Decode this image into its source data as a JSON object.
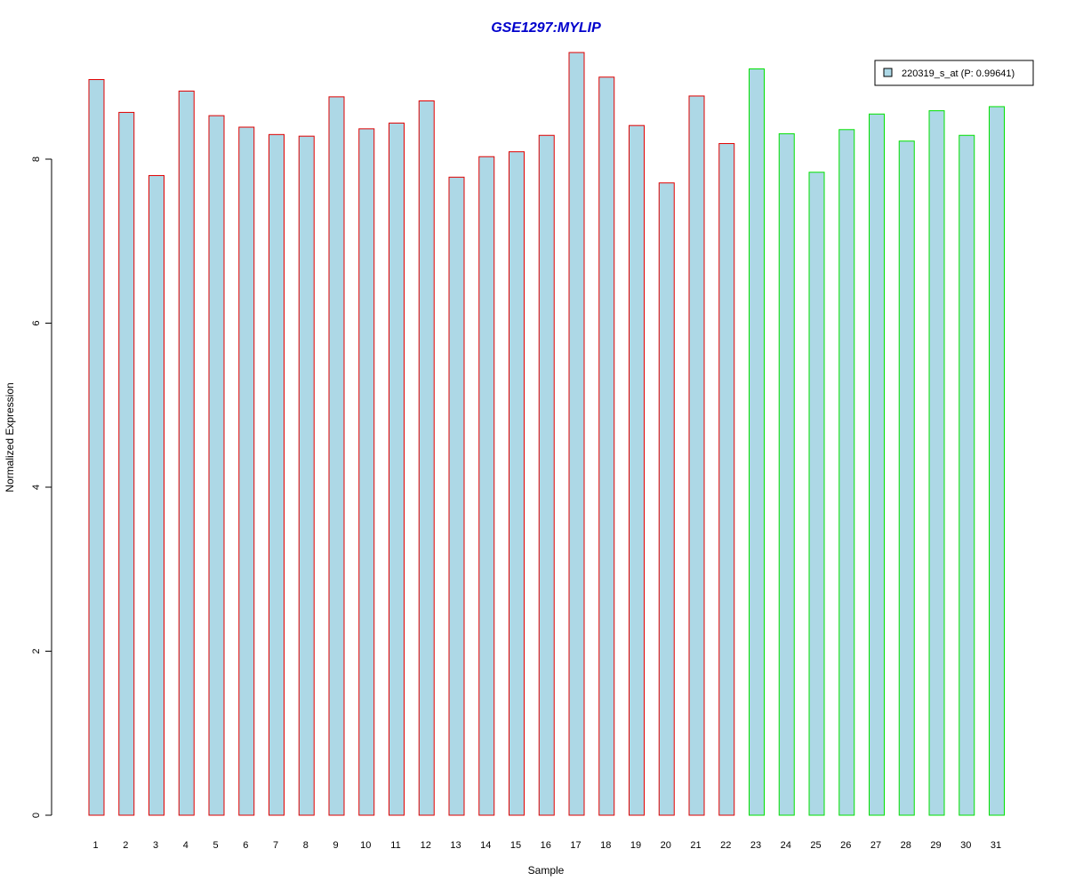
{
  "chart_data": {
    "type": "bar",
    "title": "GSE1297:MYLIP",
    "xlabel": "Sample",
    "ylabel": "Normalized Expression",
    "ylim": [
      0,
      9.4
    ],
    "yticks": [
      0,
      2,
      4,
      6,
      8
    ],
    "categories": [
      "1",
      "2",
      "3",
      "4",
      "5",
      "6",
      "7",
      "8",
      "9",
      "10",
      "11",
      "12",
      "13",
      "14",
      "15",
      "16",
      "17",
      "18",
      "19",
      "20",
      "21",
      "22",
      "23",
      "24",
      "25",
      "26",
      "27",
      "28",
      "29",
      "30",
      "31"
    ],
    "series": [
      {
        "name": "220319_s_at (P: 0.99641)",
        "values": [
          8.97,
          8.57,
          7.8,
          8.83,
          8.53,
          8.39,
          8.3,
          8.28,
          8.76,
          8.37,
          8.44,
          8.71,
          7.78,
          8.03,
          8.09,
          8.29,
          9.3,
          9.0,
          8.41,
          7.71,
          8.77,
          8.19,
          9.1,
          8.31,
          7.84,
          8.36,
          8.55,
          8.22,
          8.59,
          8.29,
          8.64
        ]
      }
    ],
    "groups": [
      {
        "from": 1,
        "to": 22,
        "border_color": "#e00000"
      },
      {
        "from": 23,
        "to": 31,
        "border_color": "#00e000"
      }
    ],
    "fill_color": "#add8e6",
    "title_color": "#0000cc",
    "grid": false,
    "legend_position": "top-right"
  }
}
